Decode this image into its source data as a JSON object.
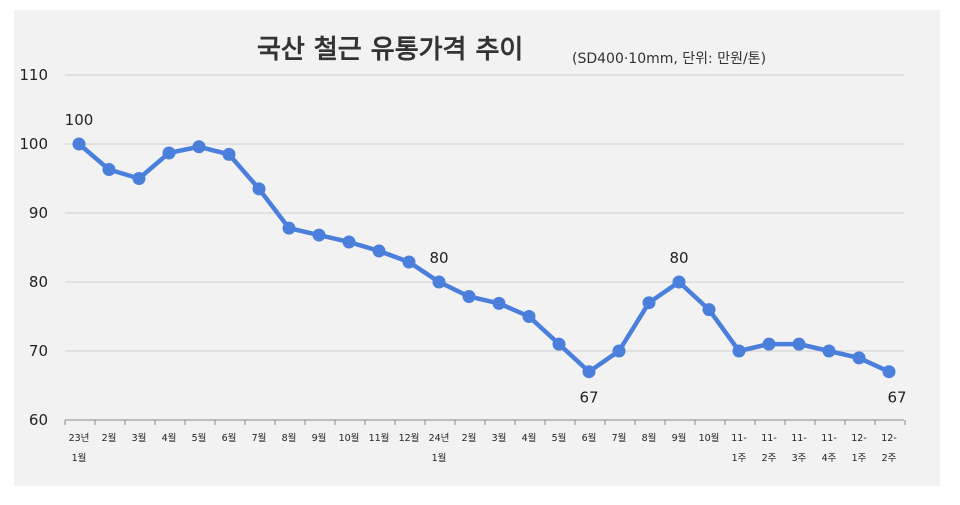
{
  "chart_data": {
    "type": "line",
    "title": "국산 철근 유통가격 추이",
    "subtitle": "(SD400·10mm, 단위: 만원/톤)",
    "ylim": [
      60,
      110
    ],
    "yticks": [
      60,
      70,
      80,
      90,
      100,
      110
    ],
    "grid": true,
    "legend": "none",
    "categories": [
      [
        "23년",
        "1월"
      ],
      [
        "2월"
      ],
      [
        "3월"
      ],
      [
        "4월"
      ],
      [
        "5월"
      ],
      [
        "6월"
      ],
      [
        "7월"
      ],
      [
        "8월"
      ],
      [
        "9월"
      ],
      [
        "10월"
      ],
      [
        "11월"
      ],
      [
        "12월"
      ],
      [
        "24년",
        "1월"
      ],
      [
        "2월"
      ],
      [
        "3월"
      ],
      [
        "4월"
      ],
      [
        "5월"
      ],
      [
        "6월"
      ],
      [
        "7월"
      ],
      [
        "8월"
      ],
      [
        "9월"
      ],
      [
        "10월"
      ],
      [
        "11-",
        "1주"
      ],
      [
        "11-",
        "2주"
      ],
      [
        "11-",
        "3주"
      ],
      [
        "11-",
        "4주"
      ],
      [
        "12-",
        "1주"
      ],
      [
        "12-",
        "2주"
      ]
    ],
    "series": [
      {
        "values": [
          100,
          96.3,
          95,
          98.7,
          99.6,
          98.5,
          93.5,
          87.8,
          86.8,
          85.8,
          84.5,
          82.9,
          80,
          77.9,
          76.9,
          75,
          71,
          67,
          70,
          77,
          80,
          76,
          70,
          71,
          71,
          70,
          69,
          67
        ],
        "color": "#4a7fdc"
      }
    ],
    "data_labels": [
      {
        "index": 0,
        "text": "100",
        "position": "above"
      },
      {
        "index": 12,
        "text": "80",
        "position": "above"
      },
      {
        "index": 17,
        "text": "67",
        "position": "below"
      },
      {
        "index": 20,
        "text": "80",
        "position": "above"
      },
      {
        "index": 27,
        "text": "67",
        "position": "below"
      }
    ]
  }
}
